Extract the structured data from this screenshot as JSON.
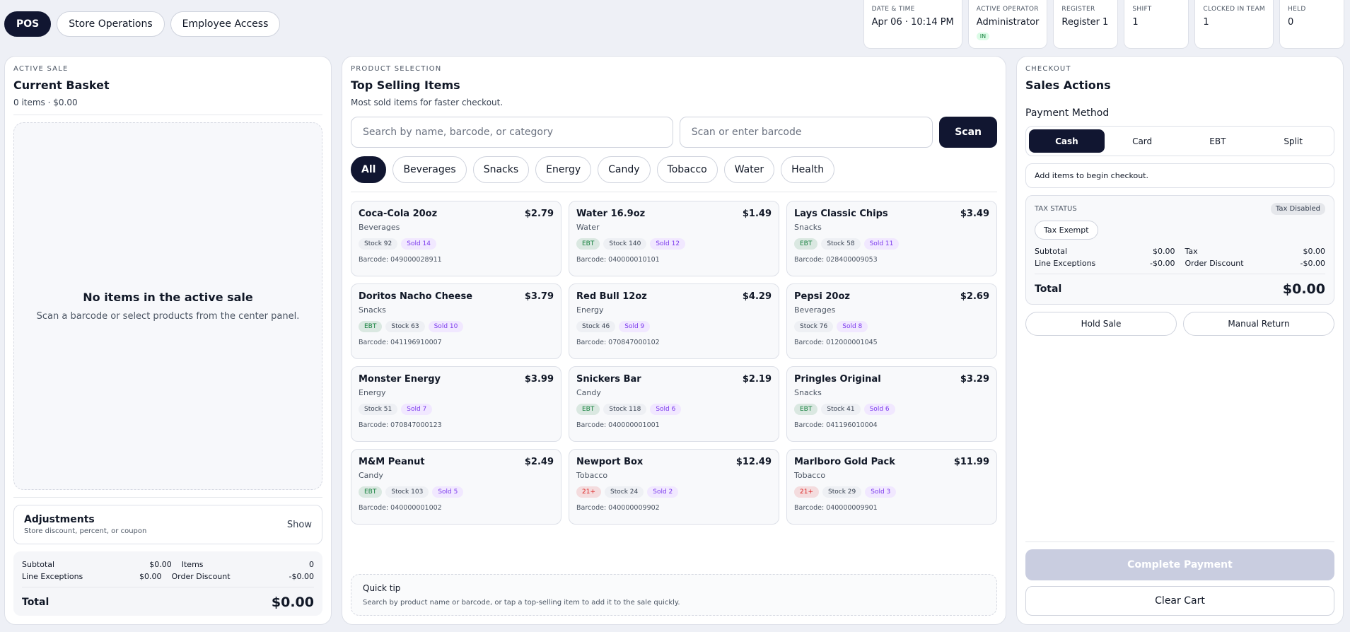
{
  "nav": {
    "tabs": [
      "POS",
      "Store Operations",
      "Employee Access"
    ]
  },
  "status": [
    {
      "label": "DATE & TIME",
      "value": "Apr 06 · 10:14 PM"
    },
    {
      "label": "ACTIVE OPERATOR",
      "value": "Administrator",
      "badge": "IN"
    },
    {
      "label": "REGISTER",
      "value": "Register 1"
    },
    {
      "label": "SHIFT",
      "value": "1"
    },
    {
      "label": "CLOCKED IN TEAM",
      "value": "1"
    },
    {
      "label": "HELD",
      "value": "0"
    }
  ],
  "basket": {
    "eyebrow": "ACTIVE SALE",
    "title": "Current Basket",
    "summary": "0 items · $0.00",
    "empty_title": "No items in the active sale",
    "empty_text": "Scan a barcode or select products from the center panel.",
    "adjustments": {
      "title": "Adjustments",
      "subtitle": "Store discount, percent, or coupon",
      "action": "Show"
    },
    "rows": [
      [
        "Subtotal",
        "$0.00",
        "Items",
        "0"
      ],
      [
        "Line Exceptions",
        "$0.00",
        "Order Discount",
        "-$0.00"
      ]
    ],
    "total_label": "Total",
    "total": "$0.00"
  },
  "products": {
    "eyebrow": "PRODUCT SELECTION",
    "title": "Top Selling Items",
    "subtitle": "Most sold items for faster checkout.",
    "search_placeholder": "Search by name, barcode, or category",
    "barcode_placeholder": "Scan or enter barcode",
    "scan": "Scan",
    "categories": [
      "All",
      "Beverages",
      "Snacks",
      "Energy",
      "Candy",
      "Tobacco",
      "Water",
      "Health"
    ],
    "items": [
      {
        "name": "Coca-Cola 20oz",
        "price": "$2.79",
        "category": "Beverages",
        "stock": "Stock 92",
        "sold": "Sold 14",
        "barcode": "Barcode: 049000028911"
      },
      {
        "name": "Water 16.9oz",
        "price": "$1.49",
        "category": "Water",
        "flag": {
          "text": "EBT",
          "color": "#15803d"
        },
        "stock": "Stock 140",
        "sold": "Sold 12",
        "barcode": "Barcode: 040000010101"
      },
      {
        "name": "Lays Classic Chips",
        "price": "$3.49",
        "category": "Snacks",
        "flag": {
          "text": "EBT",
          "color": "#15803d"
        },
        "stock": "Stock 58",
        "sold": "Sold 11",
        "barcode": "Barcode: 028400009053"
      },
      {
        "name": "Doritos Nacho Cheese",
        "price": "$3.79",
        "category": "Snacks",
        "flag": {
          "text": "EBT",
          "color": "#15803d"
        },
        "stock": "Stock 63",
        "sold": "Sold 10",
        "barcode": "Barcode: 041196910007"
      },
      {
        "name": "Red Bull 12oz",
        "price": "$4.29",
        "category": "Energy",
        "stock": "Stock 46",
        "sold": "Sold 9",
        "barcode": "Barcode: 070847000102"
      },
      {
        "name": "Pepsi 20oz",
        "price": "$2.69",
        "category": "Beverages",
        "stock": "Stock 76",
        "sold": "Sold 8",
        "barcode": "Barcode: 012000001045"
      },
      {
        "name": "Monster Energy",
        "price": "$3.99",
        "category": "Energy",
        "stock": "Stock 51",
        "sold": "Sold 7",
        "barcode": "Barcode: 070847000123"
      },
      {
        "name": "Snickers Bar",
        "price": "$2.19",
        "category": "Candy",
        "flag": {
          "text": "EBT",
          "color": "#15803d"
        },
        "stock": "Stock 118",
        "sold": "Sold 6",
        "barcode": "Barcode: 040000001001"
      },
      {
        "name": "Pringles Original",
        "price": "$3.29",
        "category": "Snacks",
        "flag": {
          "text": "EBT",
          "color": "#15803d"
        },
        "stock": "Stock 41",
        "sold": "Sold 6",
        "barcode": "Barcode: 041196010004"
      },
      {
        "name": "M&M Peanut",
        "price": "$2.49",
        "category": "Candy",
        "flag": {
          "text": "EBT",
          "color": "#15803d"
        },
        "stock": "Stock 103",
        "sold": "Sold 5",
        "barcode": "Barcode: 040000001002"
      },
      {
        "name": "Newport Box",
        "price": "$12.49",
        "category": "Tobacco",
        "flag": {
          "text": "21+",
          "color": "#dc2626"
        },
        "stock": "Stock 24",
        "sold": "Sold 2",
        "barcode": "Barcode: 040000009902"
      },
      {
        "name": "Marlboro Gold Pack",
        "price": "$11.99",
        "category": "Tobacco",
        "flag": {
          "text": "21+",
          "color": "#dc2626"
        },
        "stock": "Stock 29",
        "sold": "Sold 3",
        "barcode": "Barcode: 040000009901"
      }
    ],
    "tip_title": "Quick tip",
    "tip_text": "Search by product name or barcode, or tap a top-selling item to add it to the sale quickly."
  },
  "checkout": {
    "eyebrow": "CHECKOUT",
    "title": "Sales Actions",
    "payment_label": "Payment Method",
    "methods": [
      "Cash",
      "Card",
      "EBT",
      "Split"
    ],
    "note": "Add items to begin checkout.",
    "tax_label": "TAX STATUS",
    "tax_badge": "Tax Disabled",
    "tax_button": "Tax Exempt",
    "rows": [
      [
        "Subtotal",
        "$0.00",
        "Tax",
        "$0.00"
      ],
      [
        "Line Exceptions",
        "-$0.00",
        "Order Discount",
        "-$0.00"
      ]
    ],
    "total_label": "Total",
    "total": "$0.00",
    "hold": "Hold Sale",
    "return": "Manual Return",
    "complete": "Complete Payment",
    "clear": "Clear Cart"
  }
}
